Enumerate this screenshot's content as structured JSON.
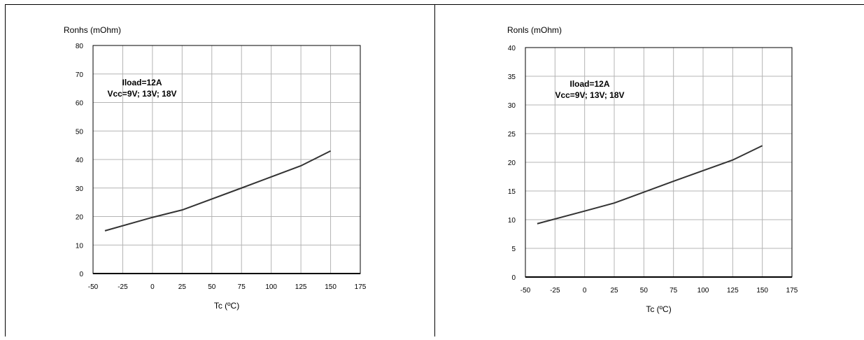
{
  "chart_data": [
    {
      "type": "line",
      "title": "",
      "ylabel": "Ronhs (mOhm)",
      "xlabel": "Tc (ºC)",
      "xlim": [
        -50,
        175
      ],
      "ylim": [
        0,
        80
      ],
      "xticks": [
        -50,
        -25,
        0,
        25,
        50,
        75,
        100,
        125,
        150,
        175
      ],
      "yticks": [
        0,
        10,
        20,
        30,
        40,
        50,
        60,
        70,
        80
      ],
      "grid": true,
      "annotation": [
        "Iload=12A",
        "Vcc=9V; 13V; 18V"
      ],
      "series": [
        {
          "x": [
            -40,
            0,
            25,
            75,
            125,
            150
          ],
          "y": [
            15,
            19.7,
            22.3,
            30,
            37.8,
            43
          ]
        }
      ],
      "color": "#333333"
    },
    {
      "type": "line",
      "title": "",
      "ylabel": "Ronls (mOhm)",
      "xlabel": "Tc (ºC)",
      "xlim": [
        -50,
        175
      ],
      "ylim": [
        0,
        40
      ],
      "xticks": [
        -50,
        -25,
        0,
        25,
        50,
        75,
        100,
        125,
        150,
        175
      ],
      "yticks": [
        0,
        5,
        10,
        15,
        20,
        25,
        30,
        35,
        40
      ],
      "grid": true,
      "annotation": [
        "Iload=12A",
        "Vcc=9V; 13V; 18V"
      ],
      "series": [
        {
          "x": [
            -40,
            0,
            25,
            75,
            125,
            150
          ],
          "y": [
            9.3,
            11.5,
            12.9,
            16.7,
            20.4,
            22.9
          ]
        }
      ],
      "color": "#333333"
    }
  ]
}
